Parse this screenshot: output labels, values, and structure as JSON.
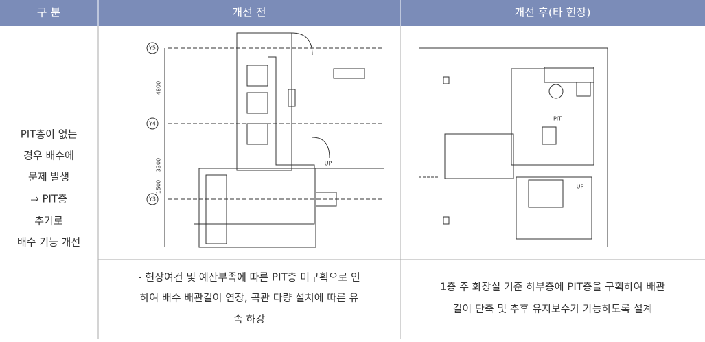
{
  "header": {
    "cells": [
      "구 분",
      "개선 전",
      "개선 후(타 현장)"
    ]
  },
  "left_label": {
    "lines": [
      "PIT층이 없는",
      "경우 배수에",
      "문제 발생",
      "⇒ PIT층",
      "추가로",
      "배수 기능 개선"
    ]
  },
  "before": {
    "drawing_labels": [
      "Y5",
      "Y4",
      "Y3",
      "4800",
      "3300",
      "1500",
      "UP"
    ],
    "description": [
      "- 현장여건 및 예산부족에 따른 PIT층 미구획으로 인",
      "하여 배수 배관길이 연장, 곡관 다량 설치에 따른 유",
      "속 하강"
    ]
  },
  "after": {
    "drawing_labels": [
      "PIT",
      "UP"
    ],
    "description": [
      "1층 주 화장실 기준 하부층에 PIT층을 구획하여 배관",
      "길이 단축 및 추후 유지보수가 가능하도록 설계"
    ]
  }
}
